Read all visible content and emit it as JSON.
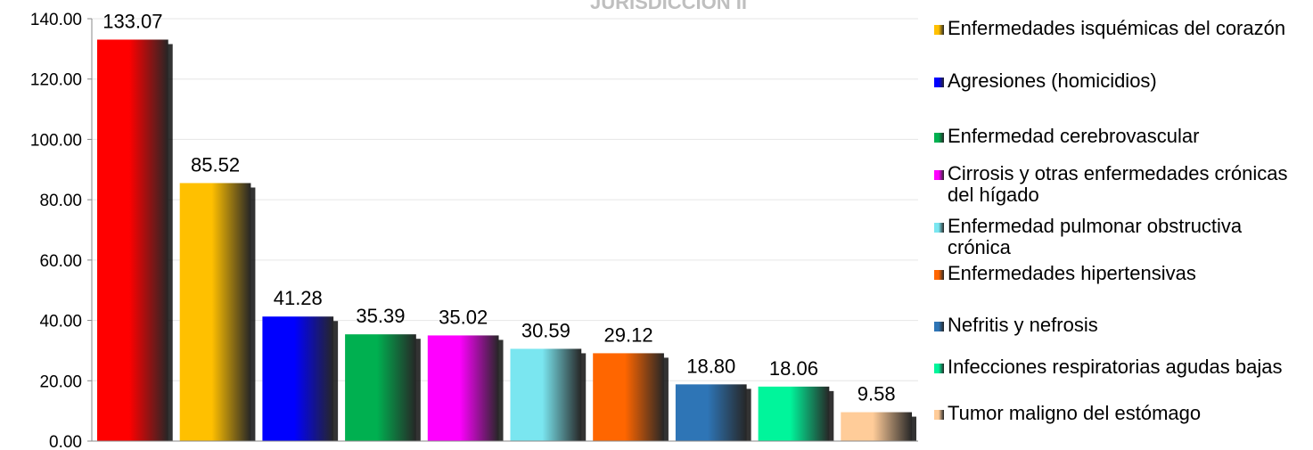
{
  "chart_data": {
    "type": "bar",
    "title": "JURISDICCIÓN II",
    "categories": [
      "Enfermedades isquémicas del corazón",
      "Enfermedades isquémicas del corazón",
      "Agresiones (homicidios)",
      "Enfermedad cerebrovascular",
      "Cirrosis y otras enfermedades crónicas del hígado",
      "Enfermedad pulmonar obstructiva crónica",
      "Enfermedades hipertensivas",
      "Nefritis y nefrosis",
      "Infecciones respiratorias agudas bajas",
      "Tumor maligno del estómago"
    ],
    "values": [
      133.07,
      85.52,
      41.28,
      35.39,
      35.02,
      30.59,
      29.12,
      18.8,
      18.06,
      9.58
    ],
    "value_labels": [
      "133.07",
      "85.52",
      "41.28",
      "35.39",
      "35.02",
      "30.59",
      "29.12",
      "18.80",
      "18.06",
      "9.58"
    ],
    "bar_colors": [
      "#ff0000",
      "#ffc000",
      "#0000ff",
      "#00b050",
      "#ff00ff",
      "#7ae6f0",
      "#ff6600",
      "#2e75b6",
      "#00f59b",
      "#ffcc99"
    ],
    "ylim": [
      0,
      140
    ],
    "yticks": [
      0,
      20,
      40,
      60,
      80,
      100,
      120,
      140
    ],
    "ytick_labels": [
      "0.00",
      "20.00",
      "40.00",
      "60.00",
      "80.00",
      "100.00",
      "120.00",
      "140.00"
    ],
    "xlabel": "",
    "ylabel": "",
    "grid": true,
    "legend_position": "right",
    "legend": [
      {
        "label": "Enfermedades isquémicas del corazón",
        "color": "#ffc000"
      },
      {
        "label": "Agresiones (homicidios)",
        "color": "#0000ff"
      },
      {
        "label": "Enfermedad cerebrovascular",
        "color": "#00b050"
      },
      {
        "label": "Cirrosis y otras enfermedades crónicas del hígado",
        "color": "#ff00ff"
      },
      {
        "label": "Enfermedad pulmonar obstructiva crónica",
        "color": "#7ae6f0"
      },
      {
        "label": "Enfermedades hipertensivas",
        "color": "#ff6600"
      },
      {
        "label": "Nefritis y nefrosis",
        "color": "#2e75b6"
      },
      {
        "label": "Infecciones respiratorias agudas bajas",
        "color": "#00f59b"
      },
      {
        "label": "Tumor maligno del estómago",
        "color": "#ffcc99"
      }
    ]
  }
}
